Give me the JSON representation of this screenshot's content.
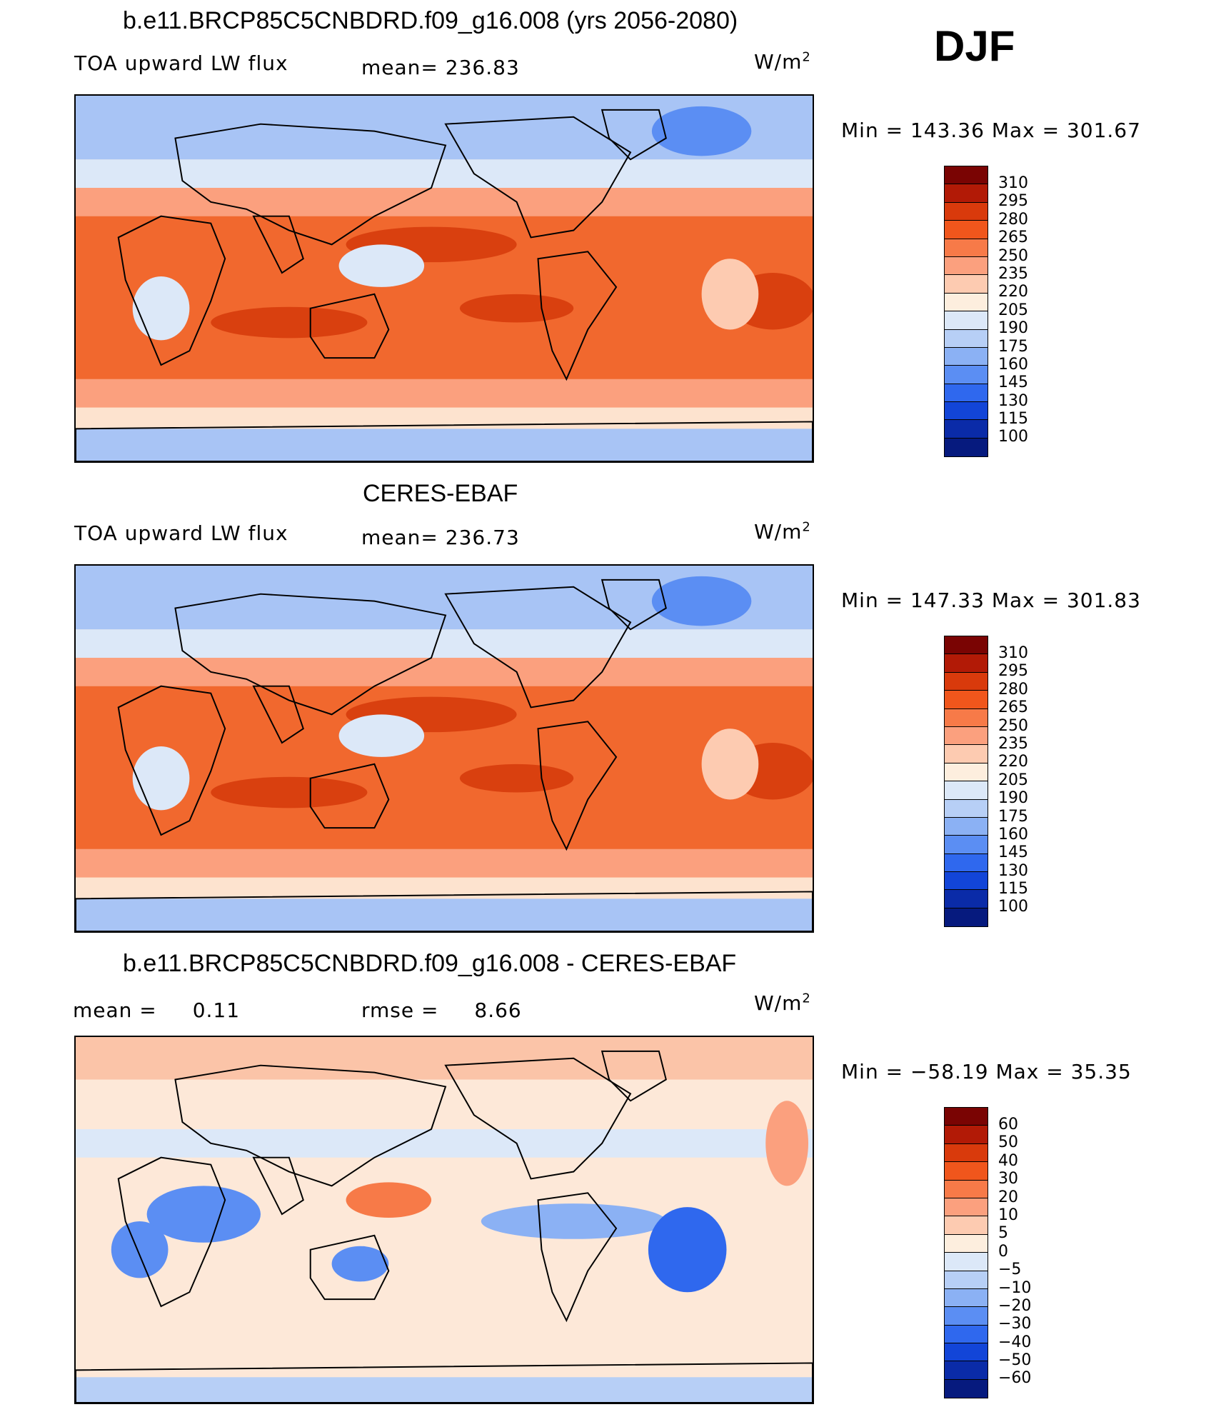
{
  "season": "DJF",
  "panels": [
    {
      "title": "b.e11.BRCP85C5CNBDRD.f09_g16.008 (yrs 2056-2080)",
      "variable": "TOA upward LW flux",
      "stat_label": "mean=",
      "stat_value": "236.83",
      "units": "W/m",
      "units_sup": "2",
      "minmax": "Min  =  143.36  Max  =  301.67",
      "colorbar_labels": [
        "310",
        "295",
        "280",
        "265",
        "250",
        "235",
        "220",
        "205",
        "190",
        "175",
        "160",
        "145",
        "130",
        "115",
        "100"
      ]
    },
    {
      "title": "CERES-EBAF",
      "variable": "TOA upward LW flux",
      "stat_label": "mean=",
      "stat_value": "236.73",
      "units": "W/m",
      "units_sup": "2",
      "minmax": "Min  =  147.33  Max  =  301.83",
      "colorbar_labels": [
        "310",
        "295",
        "280",
        "265",
        "250",
        "235",
        "220",
        "205",
        "190",
        "175",
        "160",
        "145",
        "130",
        "115",
        "100"
      ]
    },
    {
      "title": "b.e11.BRCP85C5CNBDRD.f09_g16.008 - CERES-EBAF",
      "mean_label": "mean =",
      "mean_value": "0.11",
      "rmse_label": "rmse =",
      "rmse_value": "8.66",
      "units": "W/m",
      "units_sup": "2",
      "minmax": "Min  =  −58.19  Max  =    35.35",
      "colorbar_labels": [
        "60",
        "50",
        "40",
        "30",
        "20",
        "10",
        "5",
        "0",
        "−5",
        "−10",
        "−20",
        "−30",
        "−40",
        "−50",
        "−60"
      ]
    }
  ],
  "colorbar_colors": [
    "#7a0403",
    "#b21a06",
    "#d93a0c",
    "#f0561c",
    "#f77a48",
    "#fba07e",
    "#fdcbb1",
    "#fdeede",
    "#dce8f8",
    "#b7cff6",
    "#8bb1f4",
    "#5b8ef3",
    "#2f68ee",
    "#1245d8",
    "#0a2ba8",
    "#061a7e"
  ],
  "map_colors": {
    "ocean_warm": "#f1682e",
    "ocean_hot": "#d9400f",
    "mid": "#fba07e",
    "pale": "#fde3cf",
    "cold": "#a8c4f5",
    "colder": "#5b8ef3",
    "land_edge": "#000000"
  }
}
